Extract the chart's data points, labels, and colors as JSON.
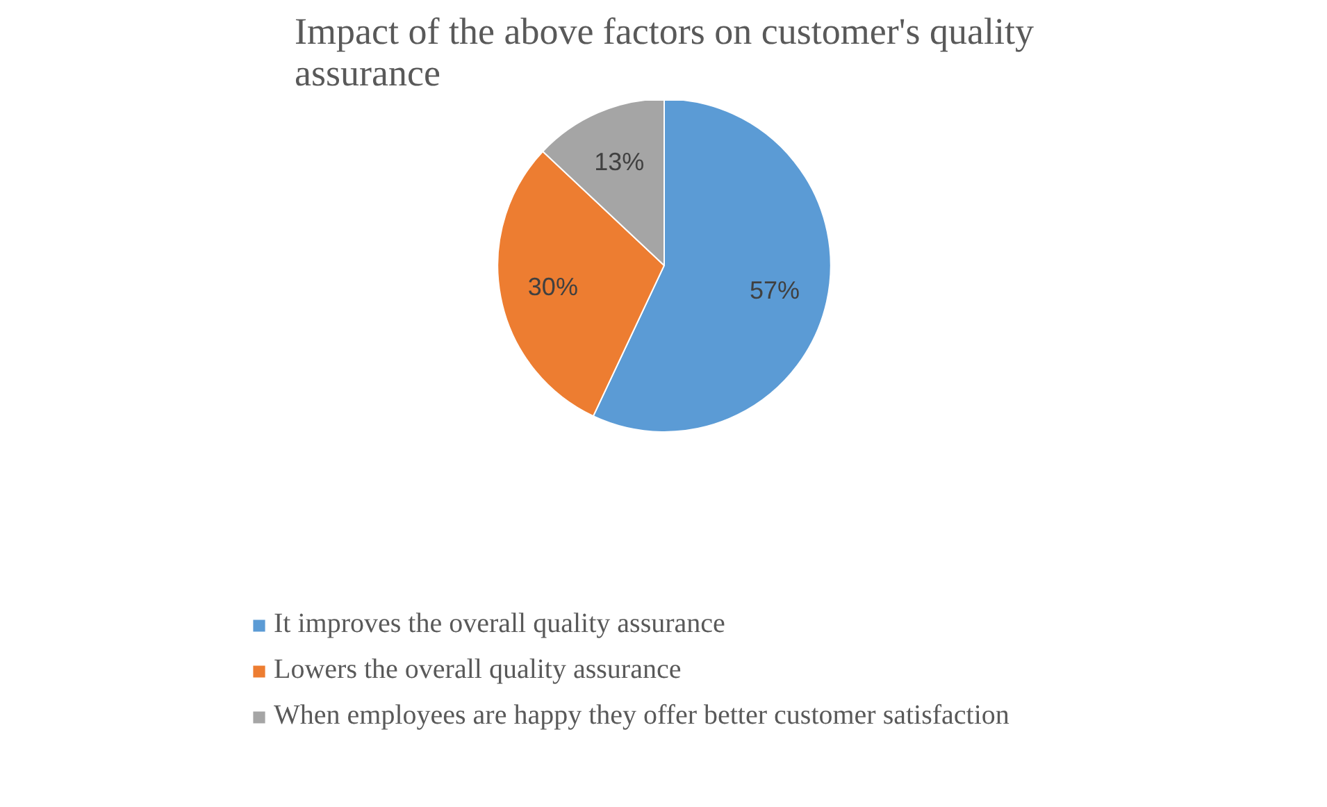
{
  "chart_data": {
    "type": "pie",
    "title": "Impact of the above factors on customer's quality assurance",
    "categories": [
      "It improves the overall quality assurance",
      "Lowers the overall quality assurance",
      "When employees are happy they offer better customer satisfaction"
    ],
    "values": [
      57,
      30,
      13
    ],
    "value_labels": [
      "57%",
      "30%",
      "13%"
    ],
    "colors": [
      "#5b9bd5",
      "#ed7d31",
      "#a5a5a5"
    ],
    "legend": "bottom"
  }
}
